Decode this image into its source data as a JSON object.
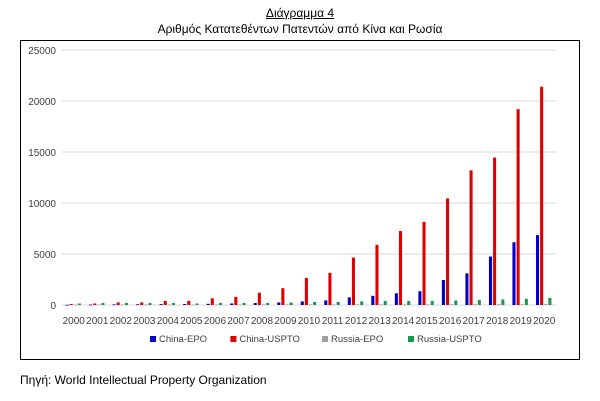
{
  "chart_data": {
    "type": "bar",
    "title": "Διάγραμμα 4",
    "subtitle": "Αριθμός Κατατεθέντων Πατεντών από Κίνα και Ρωσία",
    "xlabel": "",
    "ylabel": "",
    "ylim": [
      0,
      25000
    ],
    "yticks": [
      "0",
      "5000",
      "10000",
      "15000",
      "20000",
      "25000"
    ],
    "grid": true,
    "legend_position": "bottom",
    "categories": [
      "2000",
      "2001",
      "2002",
      "2003",
      "2004",
      "2005",
      "2006",
      "2007",
      "2008",
      "2009",
      "2010",
      "2011",
      "2012",
      "2013",
      "2014",
      "2015",
      "2016",
      "2017",
      "2018",
      "2019",
      "2020"
    ],
    "series": [
      {
        "name": "China-EPO",
        "color": "#0000cc",
        "values": [
          20,
          40,
          60,
          70,
          90,
          100,
          120,
          150,
          200,
          250,
          350,
          450,
          750,
          900,
          1150,
          1350,
          2450,
          3100,
          4750,
          6150,
          6850
        ]
      },
      {
        "name": "China-USPTO",
        "color": "#e00000",
        "values": [
          100,
          150,
          250,
          250,
          400,
          400,
          650,
          800,
          1200,
          1650,
          2650,
          3150,
          4650,
          5900,
          7250,
          8150,
          10450,
          13200,
          14450,
          19200,
          21400
        ]
      },
      {
        "name": "Russia-EPO",
        "color": "#a0a0a0",
        "values": [
          50,
          50,
          50,
          50,
          50,
          50,
          50,
          50,
          60,
          60,
          60,
          60,
          70,
          70,
          70,
          70,
          80,
          80,
          80,
          80,
          90
        ]
      },
      {
        "name": "Russia-USPTO",
        "color": "#1a9a50",
        "values": [
          150,
          200,
          200,
          200,
          200,
          150,
          200,
          200,
          200,
          250,
          300,
          300,
          350,
          400,
          400,
          400,
          450,
          500,
          550,
          600,
          700
        ]
      }
    ]
  },
  "source": "Πηγή: World Intellectual Property Organization"
}
